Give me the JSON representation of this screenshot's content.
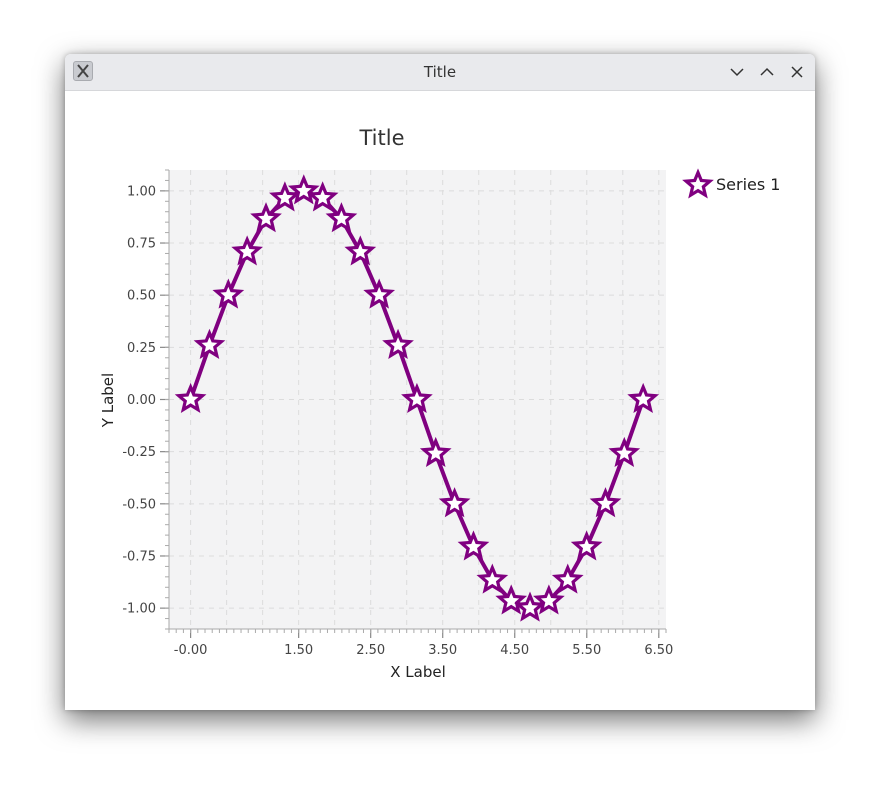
{
  "window": {
    "title": "Title"
  },
  "chart_data": {
    "type": "line",
    "title": "Title",
    "xlabel": "X Label",
    "ylabel": "Y Label",
    "xlim": [
      -0.3,
      6.6
    ],
    "ylim": [
      -1.1,
      1.1
    ],
    "x_ticks": [
      "-0.00",
      "1.50",
      "2.50",
      "3.50",
      "4.50",
      "5.50",
      "6.50"
    ],
    "y_ticks": [
      "1.00",
      "0.75",
      "0.50",
      "0.25",
      "0.00",
      "-0.25",
      "-0.50",
      "-0.75",
      "-1.00"
    ],
    "grid": true,
    "legend_position": "top-right",
    "marker": "star",
    "color": "#800080",
    "series": [
      {
        "name": "Series 1",
        "x": [
          0.0,
          0.262,
          0.524,
          0.785,
          1.047,
          1.309,
          1.571,
          1.833,
          2.094,
          2.356,
          2.618,
          2.88,
          3.142,
          3.403,
          3.665,
          3.927,
          4.189,
          4.451,
          4.712,
          4.974,
          5.236,
          5.498,
          5.76,
          6.021,
          6.283
        ],
        "y": [
          0.0,
          0.259,
          0.5,
          0.707,
          0.866,
          0.966,
          1.0,
          0.966,
          0.866,
          0.707,
          0.5,
          0.259,
          0.0,
          -0.259,
          -0.5,
          -0.707,
          -0.866,
          -0.966,
          -1.0,
          -0.966,
          -0.866,
          -0.707,
          -0.5,
          -0.259,
          0.0
        ]
      }
    ]
  }
}
